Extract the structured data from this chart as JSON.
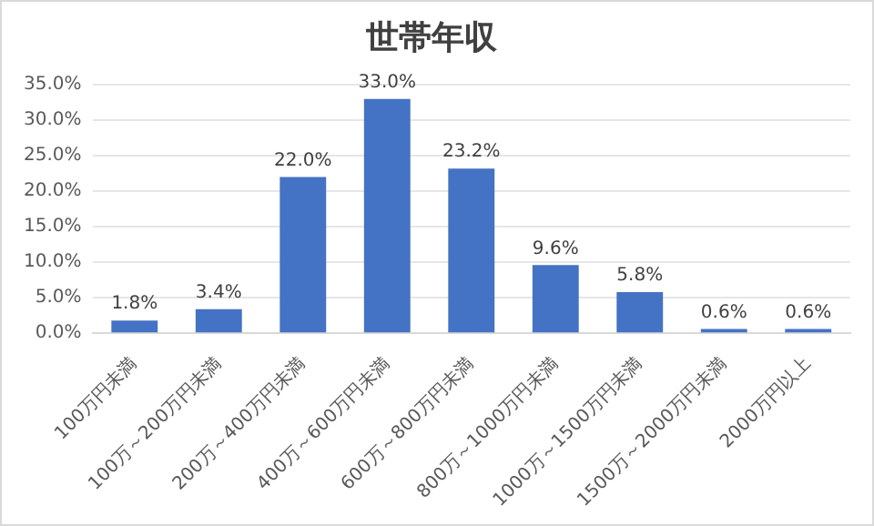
{
  "chart_data": {
    "type": "bar",
    "title": "世帯年収",
    "categories": [
      "100万円未満",
      "100万～200万円未満",
      "200万～400万円未満",
      "400万～600万円未満",
      "600万～800万円未満",
      "800万～1000万円未満",
      "1000万～1500万円未満",
      "1500万～2000万円未満",
      "2000万円以上"
    ],
    "values": [
      1.8,
      3.4,
      22.0,
      33.0,
      23.2,
      9.6,
      5.8,
      0.6,
      0.6
    ],
    "value_labels": [
      "1.8%",
      "3.4%",
      "22.0%",
      "33.0%",
      "23.2%",
      "9.6%",
      "5.8%",
      "0.6%",
      "0.6%"
    ],
    "color": "#4472c4",
    "ylim": [
      0,
      35
    ],
    "yticks": [
      {
        "value": 0,
        "label": "0.0%"
      },
      {
        "value": 5,
        "label": "5.0%"
      },
      {
        "value": 10,
        "label": "10.0%"
      },
      {
        "value": 15,
        "label": "15.0%"
      },
      {
        "value": 20,
        "label": "20.0%"
      },
      {
        "value": 25,
        "label": "25.0%"
      },
      {
        "value": 30,
        "label": "30.0%"
      },
      {
        "value": 35,
        "label": "35.0%"
      }
    ],
    "grid": "y",
    "legend": false
  }
}
